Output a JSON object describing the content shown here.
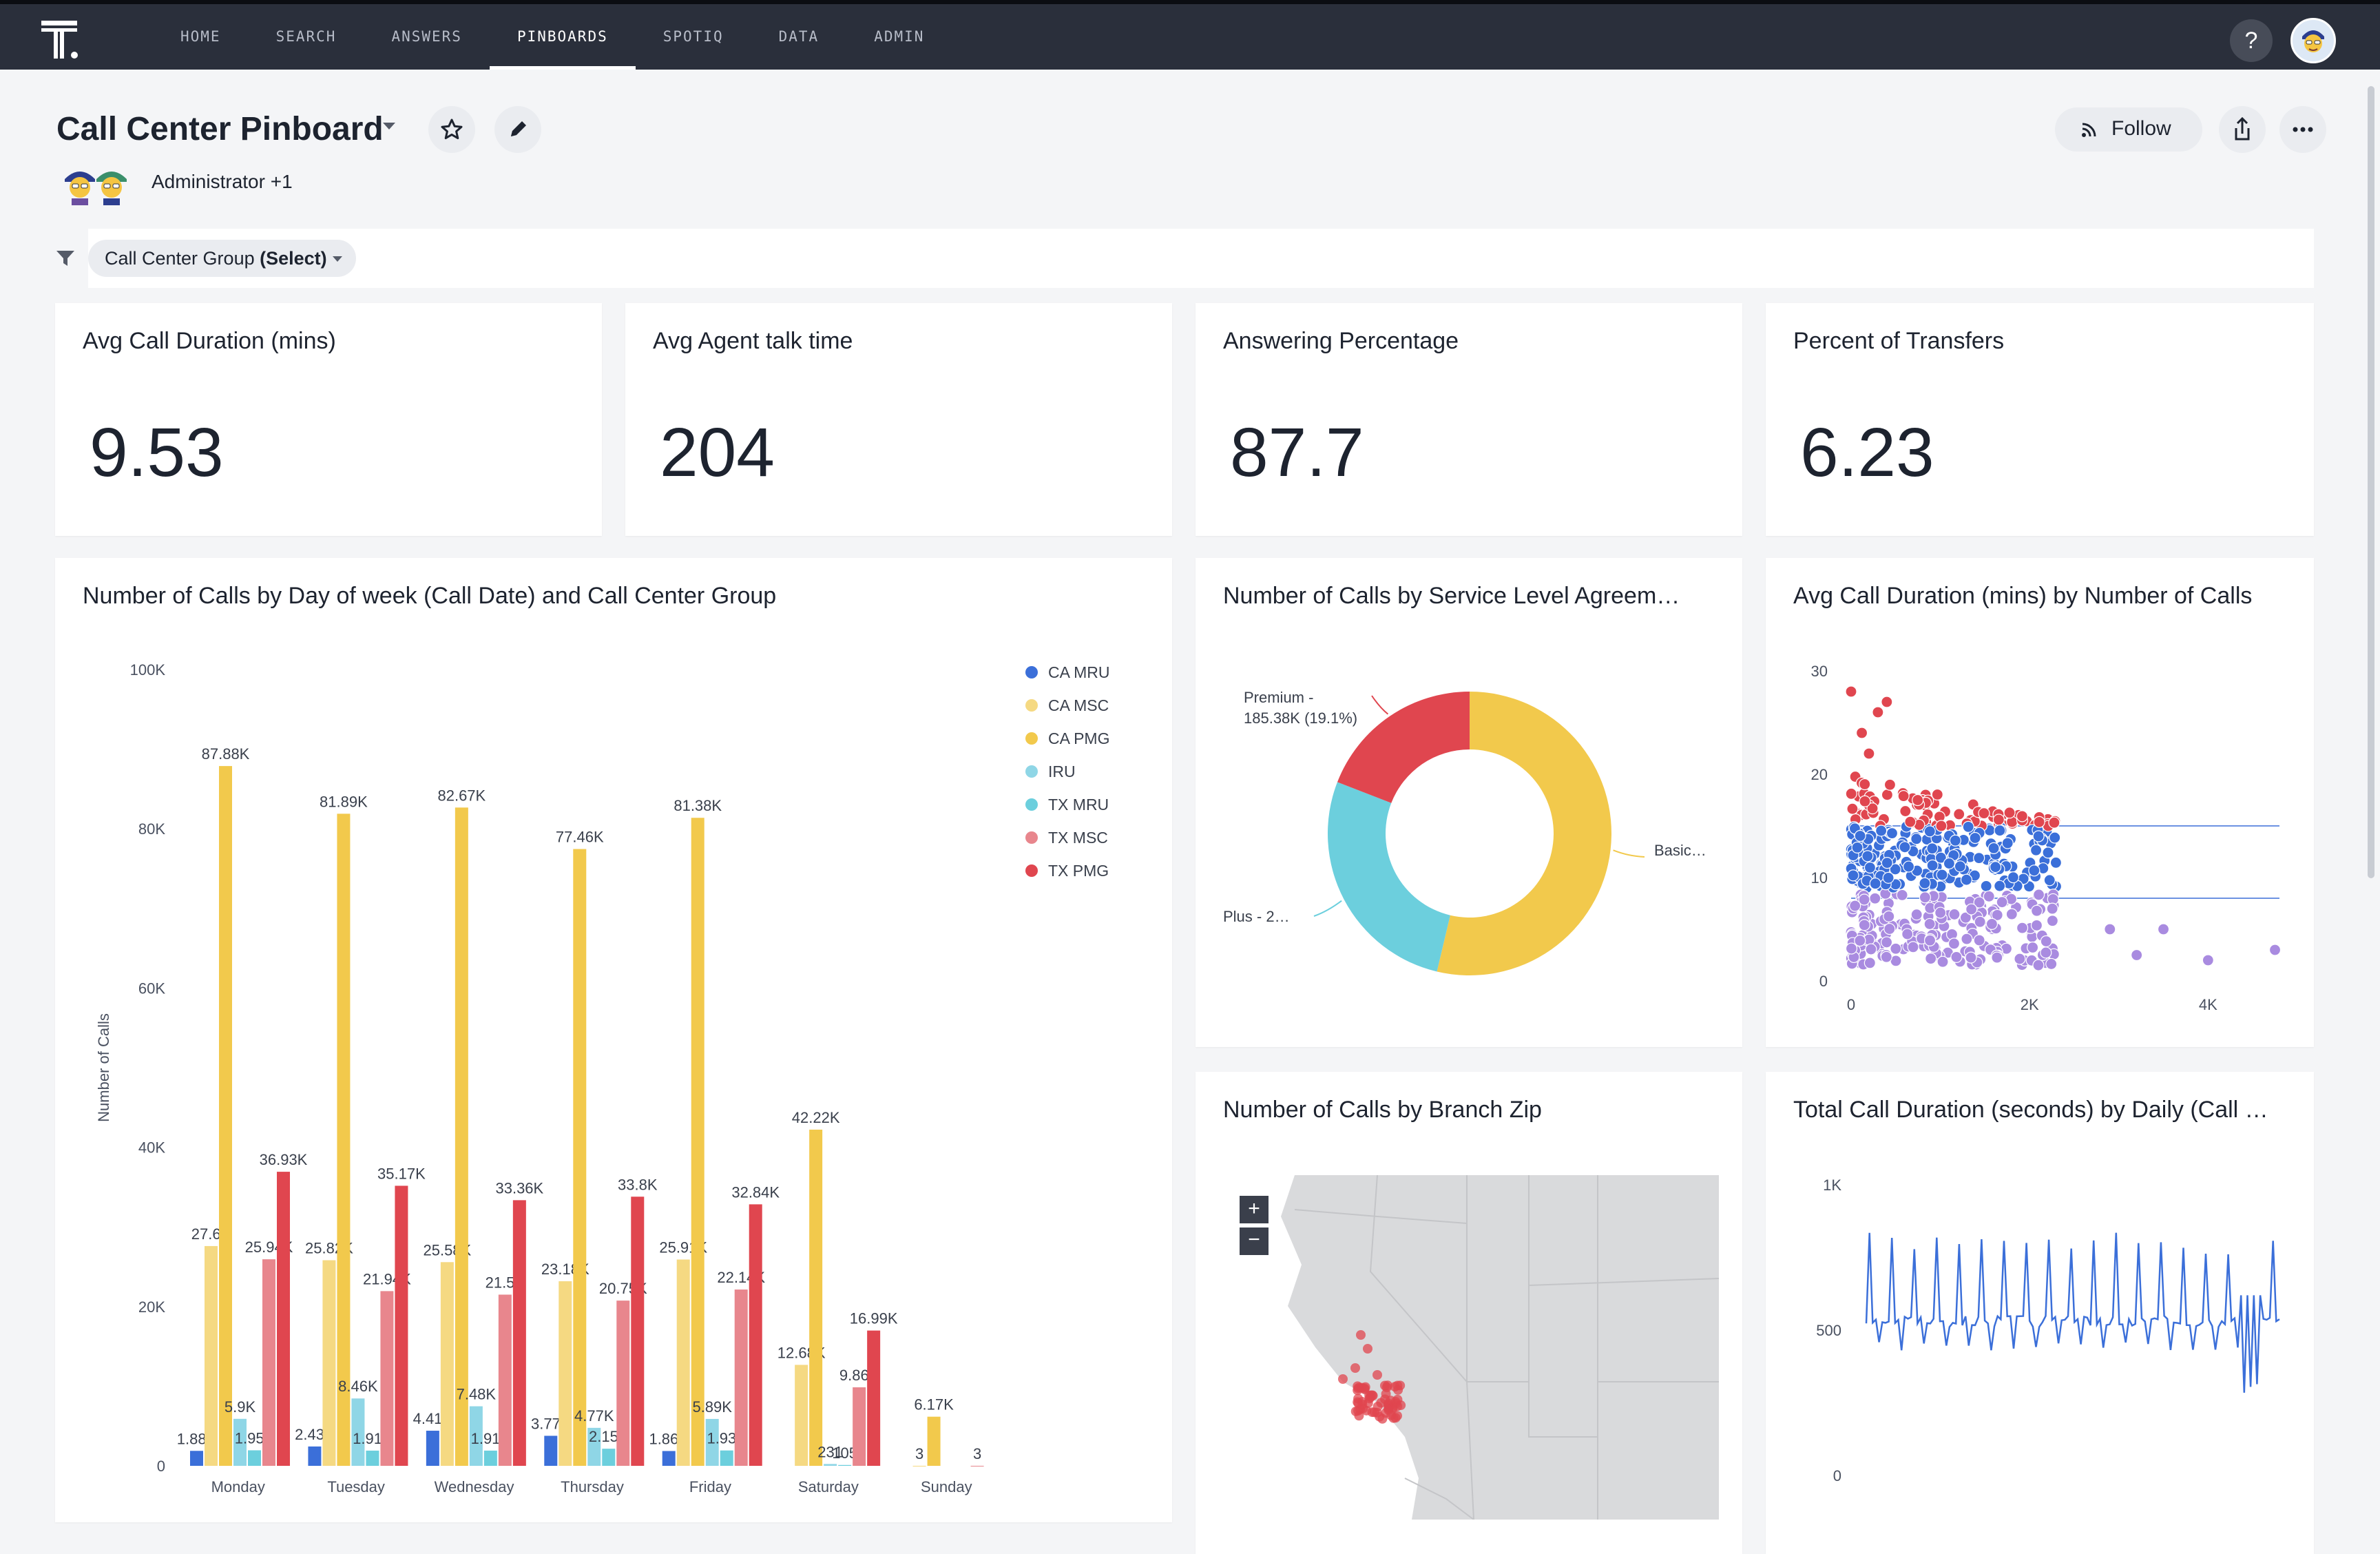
{
  "nav": {
    "items": [
      {
        "id": "home",
        "label": "HOME"
      },
      {
        "id": "search",
        "label": "SEARCH"
      },
      {
        "id": "answers",
        "label": "ANSWERS"
      },
      {
        "id": "pinboards",
        "label": "PINBOARDS"
      },
      {
        "id": "spotiq",
        "label": "SPOTIQ"
      },
      {
        "id": "data",
        "label": "DATA"
      },
      {
        "id": "admin",
        "label": "ADMIN"
      }
    ],
    "active": "pinboards",
    "help_label": "?"
  },
  "header": {
    "title": "Call Center Pinboard",
    "owners": "Administrator +1",
    "follow_label": "Follow"
  },
  "filter": {
    "prefix": "Call Center Group",
    "selection": "(Select)"
  },
  "kpis": [
    {
      "title": "Avg Call Duration (mins)",
      "value": "9.53"
    },
    {
      "title": "Avg Agent talk time",
      "value": "204"
    },
    {
      "title": "Answering Percentage",
      "value": "87.7"
    },
    {
      "title": "Percent of Transfers",
      "value": "6.23"
    }
  ],
  "colors": {
    "CA MRU": "#3b6fd9",
    "CA MSC": "#f5d982",
    "CA PMG": "#f2c94c",
    "IRU": "#8fd6e6",
    "TX MRU": "#6ccfdd",
    "TX MSC": "#e8868d",
    "TX PMG": "#e0464f",
    "accent": "#2a2f3b"
  },
  "chart_data": [
    {
      "id": "calls-by-day",
      "type": "bar",
      "title": "Number of Calls by Day of week (Call Date) and Call Center Group",
      "ylabel": "Number of Calls",
      "ylim": [
        0,
        100000
      ],
      "yticks": [
        "0",
        "20K",
        "40K",
        "60K",
        "80K",
        "100K"
      ],
      "categories": [
        "Monday",
        "Tuesday",
        "Wednesday",
        "Thursday",
        "Friday",
        "Saturday",
        "Sunday"
      ],
      "legend_position": "top-right",
      "series": [
        {
          "name": "CA MRU",
          "values": [
            1880,
            2430,
            4410,
            3770,
            1860,
            null,
            null
          ],
          "labels": [
            "1.88K",
            "2.43K",
            "4.41K",
            "3.77K",
            "1.86K",
            "",
            ""
          ]
        },
        {
          "name": "CA MSC",
          "values": [
            27600,
            25820,
            25580,
            23180,
            25910,
            12680,
            3
          ],
          "labels": [
            "27.6K",
            "25.82K",
            "25.58K",
            "23.18K",
            "25.91K",
            "12.68K",
            "3"
          ]
        },
        {
          "name": "CA PMG",
          "values": [
            87880,
            81890,
            82670,
            77460,
            81380,
            42220,
            6170
          ],
          "labels": [
            "87.88K",
            "81.89K",
            "82.67K",
            "77.46K",
            "81.38K",
            "42.22K",
            "6.17K"
          ]
        },
        {
          "name": "IRU",
          "values": [
            5900,
            8460,
            7480,
            4770,
            5890,
            231,
            null
          ],
          "labels": [
            "5.9K",
            "8.46K",
            "7.48K",
            "4.77K",
            "5.89K",
            "231",
            ""
          ]
        },
        {
          "name": "TX MRU",
          "values": [
            1950,
            1910,
            1910,
            2150,
            1930,
            105,
            null
          ],
          "labels": [
            "1.95K",
            "1.91K",
            "1.91K",
            "2.15K",
            "1.93K",
            "105",
            ""
          ]
        },
        {
          "name": "TX MSC",
          "values": [
            25940,
            21940,
            21500,
            20750,
            22140,
            9860,
            3
          ],
          "labels": [
            "25.94K",
            "21.94K",
            "21.5K",
            "20.75K",
            "22.14K",
            "9.86K",
            "3"
          ]
        },
        {
          "name": "TX PMG",
          "values": [
            36930,
            35170,
            33360,
            33800,
            32840,
            16990,
            null
          ],
          "labels": [
            "36.93K",
            "35.17K",
            "33.36K",
            "33.8K",
            "32.84K",
            "16.99K",
            ""
          ]
        }
      ]
    },
    {
      "id": "calls-by-sla",
      "type": "pie",
      "title": "Number of Calls by Service Level Agreem…",
      "slices": [
        {
          "name": "Basic",
          "value": 53.7,
          "color": "#f2c94c",
          "label": "Basic…"
        },
        {
          "name": "Plus",
          "value": 27.2,
          "color": "#6ccfdd",
          "label": "Plus - 2…"
        },
        {
          "name": "Premium",
          "value": 19.1,
          "color": "#e0464f",
          "label_line1": "Premium -",
          "label_line2": "185.38K (19.1%)"
        }
      ]
    },
    {
      "id": "duration-by-calls",
      "type": "scatter",
      "title": "Avg Call Duration (mins) by Number of Calls",
      "xlim": [
        0,
        4800
      ],
      "ylim": [
        0,
        30
      ],
      "xticks": [
        "0",
        "2K",
        "4K"
      ],
      "yticks": [
        "0",
        "10",
        "20",
        "30"
      ],
      "reference_lines": [
        15,
        8
      ],
      "series_colors": [
        "#e0464f",
        "#3b6fd9",
        "#a98be0"
      ]
    },
    {
      "id": "calls-by-zip",
      "type": "map",
      "title": "Number of Calls by Branch Zip",
      "zoom_in": "+",
      "zoom_out": "−"
    },
    {
      "id": "total-duration-daily",
      "type": "line",
      "title": "Total Call Duration (seconds) by Daily (Call …",
      "yticks": [
        "0",
        "500",
        "1K"
      ],
      "ylim": [
        0,
        1000
      ]
    }
  ]
}
